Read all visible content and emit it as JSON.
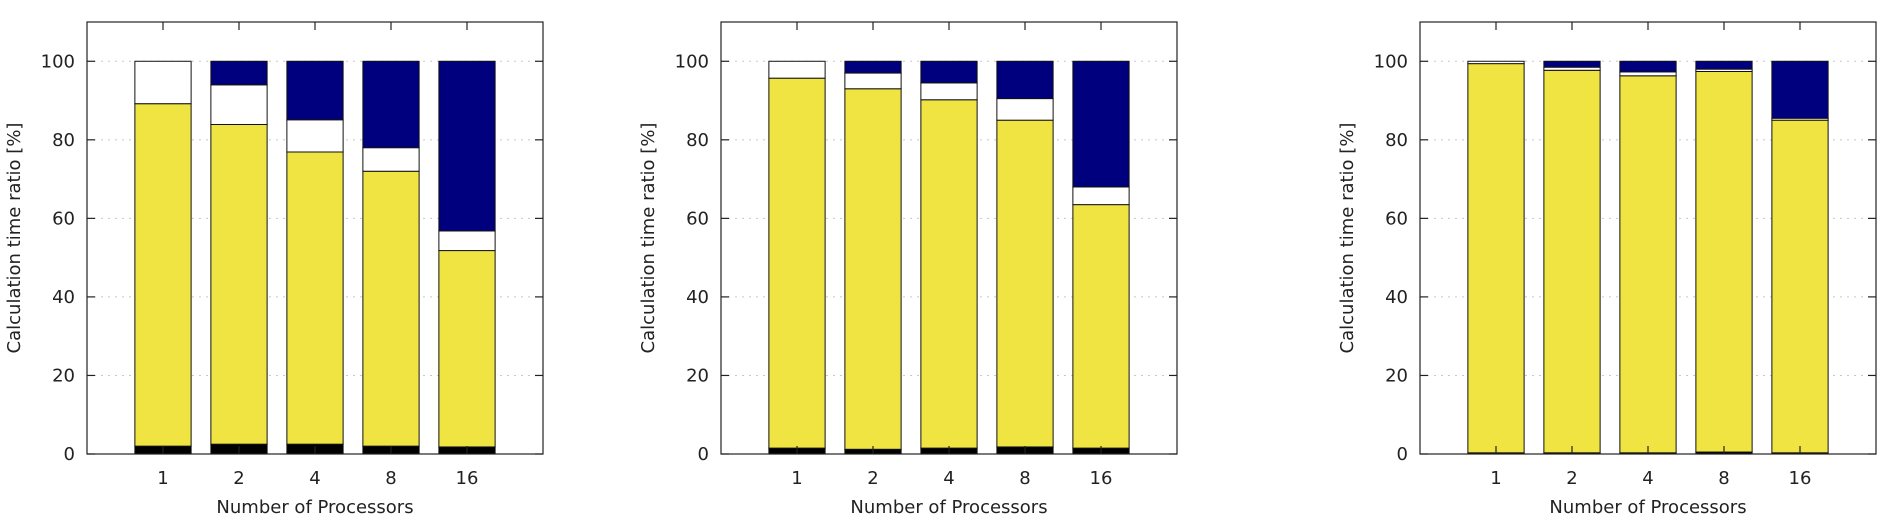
{
  "chart_data": [
    {
      "type": "bar",
      "stacked": true,
      "categories": [
        "1",
        "2",
        "4",
        "8",
        "16"
      ],
      "series": [
        {
          "color": "#000000",
          "values": [
            2,
            2.5,
            2.5,
            2,
            1.8
          ]
        },
        {
          "color": "#f0e442",
          "values": [
            87.2,
            81.4,
            74.4,
            70,
            50
          ]
        },
        {
          "color": "#ffffff",
          "values": [
            10.8,
            10.1,
            8.2,
            6,
            5
          ]
        },
        {
          "color": "#00007f",
          "values": [
            0,
            6,
            14.9,
            22,
            43.2
          ]
        }
      ],
      "xlabel": "Number of Processors",
      "ylabel": "Calculation time ratio [%]",
      "ylim": [
        0,
        110
      ],
      "yticks": [
        "0",
        "20",
        "40",
        "60",
        "80",
        "100"
      ],
      "grid": true
    },
    {
      "type": "bar",
      "stacked": true,
      "categories": [
        "1",
        "2",
        "4",
        "8",
        "16"
      ],
      "series": [
        {
          "color": "#000000",
          "values": [
            1.5,
            1.2,
            1.5,
            1.8,
            1.5
          ]
        },
        {
          "color": "#f0e442",
          "values": [
            94.2,
            91.8,
            88.7,
            83.2,
            62
          ]
        },
        {
          "color": "#ffffff",
          "values": [
            4.3,
            4,
            4.3,
            5.5,
            4.5
          ]
        },
        {
          "color": "#00007f",
          "values": [
            0,
            3,
            5.5,
            9.5,
            32
          ]
        }
      ],
      "xlabel": "Number of Processors",
      "ylabel": "Calculation time ratio [%]",
      "ylim": [
        0,
        110
      ],
      "yticks": [
        "0",
        "20",
        "40",
        "60",
        "80",
        "100"
      ],
      "grid": true
    },
    {
      "type": "bar",
      "stacked": true,
      "categories": [
        "1",
        "2",
        "4",
        "8",
        "16"
      ],
      "series": [
        {
          "color": "#000000",
          "values": [
            0.3,
            0.3,
            0.3,
            0.5,
            0.3
          ]
        },
        {
          "color": "#f0e442",
          "values": [
            99.1,
            97.4,
            96,
            96.9,
            84.7
          ]
        },
        {
          "color": "#ffffff",
          "values": [
            0.6,
            0.8,
            1,
            0.6,
            0.5
          ]
        },
        {
          "color": "#00007f",
          "values": [
            0,
            1.5,
            2.7,
            2,
            14.5
          ]
        }
      ],
      "xlabel": "Number of Processors",
      "ylabel": "Calculation time ratio [%]",
      "ylim": [
        0,
        110
      ],
      "yticks": [
        "0",
        "20",
        "40",
        "60",
        "80",
        "100"
      ],
      "grid": true
    }
  ]
}
